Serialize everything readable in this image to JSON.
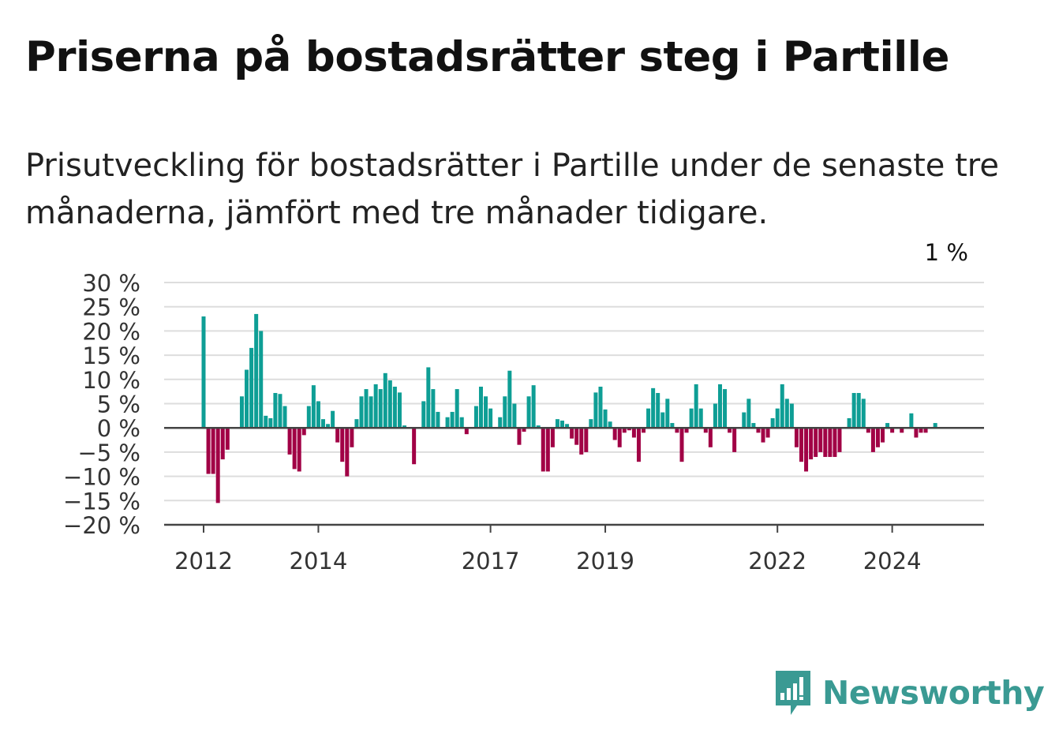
{
  "title": "Priserna på bostadsrätter steg i Partille",
  "subtitle": "Prisutveckling för bostadsrätter i Partille under de senaste tre månaderna, jämfört med tre månader tidigare.",
  "brand": {
    "name": "Newsworthy",
    "icon": "newsworthy-logo-icon",
    "color": "#3a9a93"
  },
  "chart_data": {
    "type": "bar",
    "title": "Priserna på bostadsrätter steg i Partille",
    "xlabel": "",
    "ylabel": "",
    "ylim": [
      -20,
      30
    ],
    "yticks": [
      30,
      25,
      20,
      15,
      10,
      5,
      0,
      -5,
      -10,
      -15,
      -20
    ],
    "ytick_labels": [
      "30 %",
      "25 %",
      "20 %",
      "15 %",
      "10 %",
      "5 %",
      "0 %",
      "−5 %",
      "−10 %",
      "−15 %",
      "−20 %"
    ],
    "xticks": [
      {
        "label": "2012",
        "index": 0
      },
      {
        "label": "2014",
        "index": 24
      },
      {
        "label": "2017",
        "index": 60
      },
      {
        "label": "2019",
        "index": 84
      },
      {
        "label": "2022",
        "index": 120
      },
      {
        "label": "2024",
        "index": 144
      }
    ],
    "start": "2012-01",
    "frequency": "monthly",
    "positive_color": "#0e9e95",
    "negative_color": "#a10045",
    "grid": true,
    "annotation": {
      "text": "1 %",
      "index": 155
    },
    "values": [
      23,
      -9.5,
      -9.5,
      -15.5,
      -6.5,
      -4.5,
      0,
      0,
      6.5,
      12,
      16.5,
      23.5,
      20,
      2.5,
      2,
      7.2,
      7,
      4.5,
      -5.5,
      -8.5,
      -9,
      -1.5,
      4.5,
      8.8,
      5.5,
      1.8,
      0.8,
      3.5,
      -3,
      -7,
      -10,
      -4,
      1.8,
      6.5,
      8,
      6.5,
      9,
      8,
      11.3,
      9.8,
      8.5,
      7.3,
      0.5,
      0,
      -7.5,
      0,
      5.5,
      12.5,
      8,
      3.3,
      0,
      2.2,
      3.3,
      8,
      2.2,
      -1.3,
      0,
      4.5,
      8.5,
      6.5,
      4,
      0,
      2.2,
      6.5,
      11.8,
      5,
      -3.5,
      -0.8,
      6.5,
      8.8,
      0.5,
      -9,
      -9,
      -4,
      1.8,
      1.5,
      0.8,
      -2.2,
      -3.5,
      -5.5,
      -5,
      1.8,
      7.3,
      8.5,
      3.8,
      1.3,
      -2.5,
      -4,
      -1,
      -0.5,
      -2,
      -7,
      -1,
      4,
      8.2,
      7.2,
      3.2,
      6,
      1,
      -1,
      -7,
      -1,
      4,
      9,
      4,
      -1,
      -4,
      5,
      9,
      8,
      -1,
      -5,
      0,
      3.2,
      6,
      1,
      -1,
      -3,
      -2,
      2,
      4,
      9,
      6,
      5,
      -4,
      -7,
      -9,
      -6.5,
      -6,
      -5,
      -6,
      -6,
      -6,
      -5,
      0,
      2,
      7.2,
      7.2,
      6,
      -1,
      -5,
      -4,
      -3,
      1,
      -1,
      0,
      -1,
      0,
      3,
      -2,
      -1,
      -1,
      0,
      1
    ]
  }
}
